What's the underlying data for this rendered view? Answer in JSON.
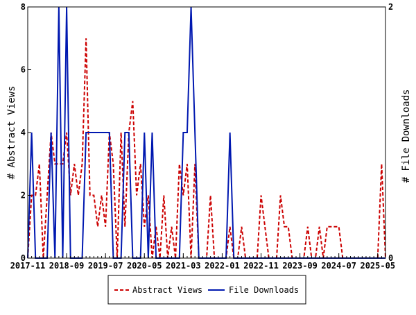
{
  "chart_data": {
    "type": "line",
    "title": "",
    "ylabel": "# Abstract Views",
    "ylabel_right": "# File Downloads",
    "x_tick_labels": [
      "2017-11",
      "2018-09",
      "2019-07",
      "2020-05",
      "2021-03",
      "2022-01",
      "2022-11",
      "2023-09",
      "2024-07",
      "2025-05"
    ],
    "x_start": "2017-11",
    "x_count": 93,
    "ylim_left": [
      0,
      8
    ],
    "yticks_left": [
      "0",
      "2",
      "4",
      "6",
      "8"
    ],
    "ylim_right": [
      0,
      2
    ],
    "yticks_right": [
      "0",
      "2"
    ],
    "grid": false,
    "legend_position": "bottom",
    "series": [
      {
        "name": "Abstract Views",
        "axis": "left",
        "color": "#cc0000",
        "style": "dashed",
        "values": [
          0,
          2,
          2,
          3,
          0,
          2,
          4,
          3,
          3,
          3,
          4,
          2,
          3,
          2,
          3,
          7,
          2,
          2,
          1,
          2,
          1,
          4,
          3,
          0,
          4,
          1,
          4,
          5,
          2,
          3,
          1,
          2,
          0,
          1,
          0,
          2,
          0,
          1,
          0,
          3,
          2,
          3,
          0,
          3,
          0,
          0,
          0,
          2,
          0,
          0,
          0,
          0,
          1,
          0,
          0,
          1,
          0,
          0,
          0,
          0,
          2,
          1,
          0,
          0,
          0,
          2,
          1,
          1,
          0,
          0,
          0,
          0,
          1,
          0,
          0,
          1,
          0,
          1,
          1,
          1,
          1,
          0,
          0,
          0,
          0,
          0,
          0,
          0,
          0,
          0,
          0,
          3,
          0
        ]
      },
      {
        "name": "File Downloads",
        "axis": "right",
        "color": "#0018b0",
        "style": "solid",
        "values": [
          0,
          1,
          0,
          0,
          0,
          0,
          1,
          0,
          2,
          0,
          2,
          0,
          0,
          0,
          0,
          1,
          1,
          1,
          1,
          1,
          1,
          1,
          0,
          0,
          0,
          1,
          1,
          0,
          0,
          0,
          1,
          0,
          1,
          0,
          0,
          0,
          0,
          0,
          0,
          0,
          1,
          1,
          2,
          1,
          0,
          0,
          0,
          0,
          0,
          0,
          0,
          0,
          1,
          0,
          0,
          0,
          0,
          0,
          0,
          0,
          0,
          0,
          0,
          0,
          0,
          0,
          0,
          0,
          0,
          0,
          0,
          0,
          0,
          0,
          0,
          0,
          0,
          0,
          0,
          0,
          0,
          0,
          0,
          0,
          0,
          0,
          0,
          0,
          0,
          0,
          0,
          0,
          0
        ]
      }
    ]
  }
}
